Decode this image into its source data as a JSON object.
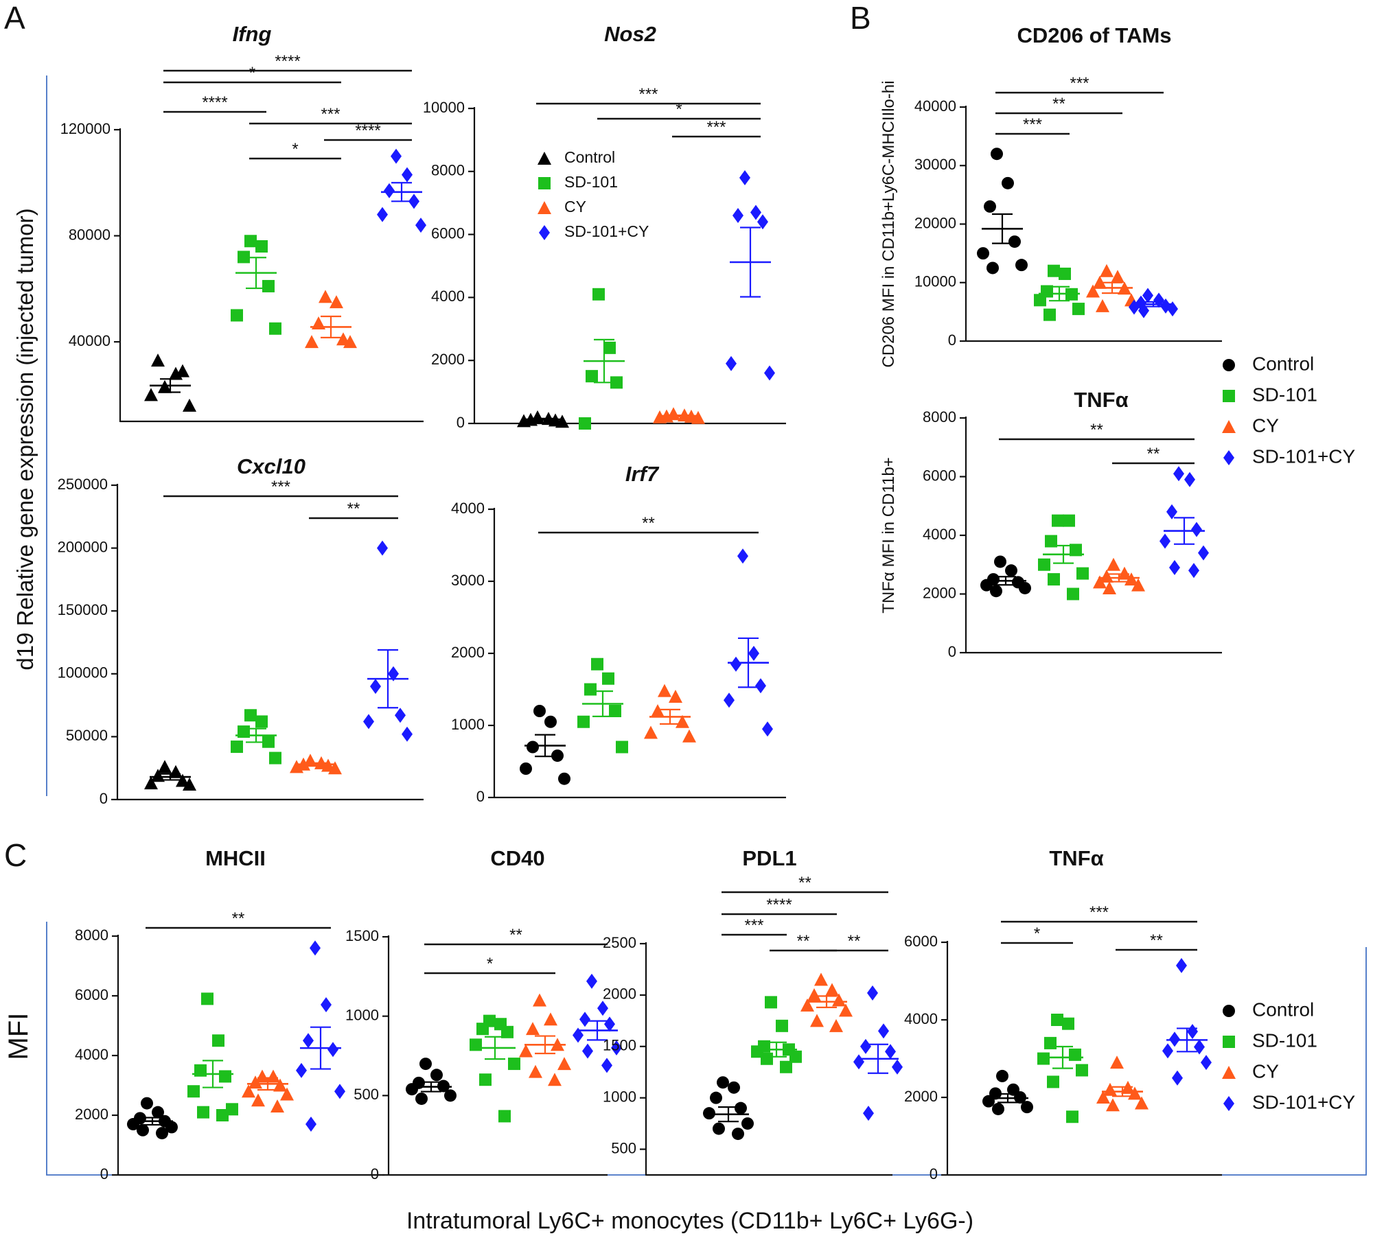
{
  "figure": {
    "panel_labels": [
      "A",
      "B",
      "C"
    ],
    "groups": [
      "Control",
      "SD-101",
      "CY",
      "SD-101+CY"
    ],
    "colors": {
      "Control": "#000000",
      "SD-101": "#1dbf1d",
      "CY": "#ff5a1a",
      "SD-101+CY": "#1a1aff"
    },
    "legend_B": [
      "Control",
      "SD-101",
      "CY",
      "SD-101+CY"
    ],
    "legend_C": [
      "Control",
      "SD-101",
      "CY",
      "SD-101+CY"
    ],
    "panel_A_ylabel": "d19 Relative gene expression (injected tumor)",
    "panel_C_ylabel": "MFI",
    "panel_C_xlabel": "Intratumoral Ly6C+ monocytes (CD11b+ Ly6C+ Ly6G-)"
  },
  "chart_data": [
    {
      "id": "ifng",
      "panel": "A",
      "type": "scatter",
      "title": "Ifng",
      "title_italic": true,
      "ylabel": "",
      "ylim": [
        10000,
        120000
      ],
      "yticks": [
        40000,
        80000,
        120000
      ],
      "markers": [
        "triangle",
        "square",
        "triangle",
        "diamond"
      ],
      "series": [
        {
          "values": [
            23000,
            28000,
            33000,
            29000,
            20000,
            16000
          ],
          "mean": 23500,
          "sem": 2500
        },
        {
          "values": [
            78000,
            76000,
            72000,
            61000,
            50000,
            45000
          ],
          "mean": 66000,
          "sem": 5800
        },
        {
          "values": [
            57000,
            55000,
            47000,
            41000,
            40000,
            40000
          ],
          "mean": 45600,
          "sem": 4000
        },
        {
          "values": [
            110000,
            103000,
            97000,
            93000,
            88000,
            84000
          ],
          "mean": 96500,
          "sem": 3500
        }
      ],
      "sig": [
        {
          "g1": 0,
          "g2": 3,
          "label": "****",
          "y": 103
        },
        {
          "g1": 0,
          "g2": 2,
          "label": "*",
          "y": 120
        },
        {
          "g1": 0,
          "g2": 1,
          "label": "****",
          "y": 163
        },
        {
          "g1": 1,
          "g2": 3,
          "label": "***",
          "y": 180
        },
        {
          "g1": 2,
          "g2": 3,
          "label": "****",
          "y": 204
        },
        {
          "g1": 1,
          "g2": 2,
          "label": "*",
          "y": 231
        }
      ]
    },
    {
      "id": "nos2",
      "panel": "A",
      "type": "scatter",
      "title": "Nos2",
      "title_italic": true,
      "ylabel": "",
      "ylim": [
        0,
        10000
      ],
      "yticks": [
        0,
        2000,
        4000,
        6000,
        8000,
        10000
      ],
      "markers": [
        "triangle",
        "square",
        "triangle",
        "diamond"
      ],
      "series": [
        {
          "values": [
            200,
            150,
            120,
            100,
            80,
            60
          ],
          "mean": 130,
          "sem": 25
        },
        {
          "values": [
            4100,
            2400,
            1500,
            1300,
            0
          ],
          "mean": 1980,
          "sem": 680
        },
        {
          "values": [
            300,
            260,
            230,
            220,
            200,
            180
          ],
          "mean": 240,
          "sem": 20
        },
        {
          "values": [
            7800,
            6700,
            6600,
            6400,
            1900,
            1600
          ],
          "mean": 5120,
          "sem": 1100
        }
      ],
      "sig": [
        {
          "g1": 0,
          "g2": 3,
          "label": "***",
          "y": 151
        },
        {
          "g1": 1,
          "g2": 3,
          "label": "*",
          "y": 173
        },
        {
          "g1": 2,
          "g2": 3,
          "label": "***",
          "y": 199
        }
      ],
      "legend": [
        "Control",
        "SD-101",
        "CY",
        "SD-101+CY"
      ]
    },
    {
      "id": "cxcl10",
      "panel": "A",
      "type": "scatter",
      "title": "Cxcl10",
      "title_italic": true,
      "ylabel": "",
      "ylim": [
        0,
        250000
      ],
      "yticks": [
        0,
        50000,
        100000,
        150000,
        200000,
        250000
      ],
      "markers": [
        "triangle",
        "square",
        "triangle",
        "diamond"
      ],
      "series": [
        {
          "values": [
            26000,
            22000,
            19000,
            15000,
            13000,
            12000
          ],
          "mean": 18000,
          "sem": 2400
        },
        {
          "values": [
            67000,
            62000,
            54000,
            46000,
            42000,
            33000
          ],
          "mean": 51000,
          "sem": 5400
        },
        {
          "values": [
            31000,
            29000,
            28000,
            27000,
            26000,
            25000
          ],
          "mean": 28000,
          "sem": 1000
        },
        {
          "values": [
            200000,
            100000,
            90000,
            67000,
            62000,
            52000
          ],
          "mean": 96000,
          "sem": 23000
        }
      ],
      "sig": [
        {
          "g1": 0,
          "g2": 3,
          "label": "***",
          "y": 723
        },
        {
          "g1": 2,
          "g2": 3,
          "label": "**",
          "y": 755
        }
      ]
    },
    {
      "id": "irf7",
      "panel": "A",
      "type": "scatter",
      "title": "Irf7",
      "title_italic": true,
      "ylabel": "",
      "ylim": [
        0,
        4000
      ],
      "yticks": [
        0,
        1000,
        2000,
        3000,
        4000
      ],
      "markers": [
        "circle",
        "square",
        "triangle",
        "diamond"
      ],
      "series": [
        {
          "values": [
            1200,
            1050,
            700,
            580,
            400,
            260
          ],
          "mean": 720,
          "sem": 150
        },
        {
          "values": [
            1850,
            1650,
            1500,
            1200,
            1050,
            700
          ],
          "mean": 1300,
          "sem": 175
        },
        {
          "values": [
            1480,
            1400,
            1200,
            1050,
            900,
            850
          ],
          "mean": 1120,
          "sem": 100
        },
        {
          "values": [
            3350,
            2000,
            1850,
            1550,
            1350,
            950
          ],
          "mean": 1870,
          "sem": 340
        }
      ],
      "sig": [
        {
          "g1": 0,
          "g2": 3,
          "label": "**",
          "y": 776
        }
      ]
    },
    {
      "id": "cd206",
      "panel": "B",
      "type": "scatter",
      "title": "CD206 of TAMs",
      "title_italic": false,
      "ylabel": "CD206 MFI in CD11b+Ly6C-MHCIIlo-hi",
      "ylim": [
        0,
        40000
      ],
      "yticks": [
        0,
        10000,
        20000,
        30000,
        40000
      ],
      "markers": [
        "circle",
        "square",
        "triangle",
        "diamond"
      ],
      "series": [
        {
          "values": [
            32000,
            27000,
            23000,
            17000,
            15000,
            13000,
            12500
          ],
          "mean": 19200,
          "sem": 2500
        },
        {
          "values": [
            12000,
            11500,
            8500,
            8000,
            7000,
            5500,
            4500
          ],
          "mean": 8100,
          "sem": 1200
        },
        {
          "values": [
            12000,
            11000,
            10000,
            9000,
            8500,
            7000,
            6000
          ],
          "mean": 9100,
          "sem": 900
        },
        {
          "values": [
            7800,
            7000,
            6500,
            6000,
            5800,
            5500,
            5200
          ],
          "mean": 6300,
          "sem": 400
        }
      ],
      "sig": [
        {
          "g1": 0,
          "g2": 3,
          "label": "***",
          "y": 135
        },
        {
          "g1": 0,
          "g2": 2,
          "label": "**",
          "y": 165
        },
        {
          "g1": 0,
          "g2": 1,
          "label": "***",
          "y": 195
        }
      ]
    },
    {
      "id": "tnfa_b",
      "panel": "B",
      "type": "scatter",
      "title": "TNFα",
      "title_italic": false,
      "ylabel": "TNFα MFI in CD11b+",
      "ylim": [
        0,
        8000
      ],
      "yticks": [
        0,
        2000,
        4000,
        6000,
        8000
      ],
      "markers": [
        "circle",
        "square",
        "triangle",
        "diamond"
      ],
      "series": [
        {
          "values": [
            3100,
            2800,
            2500,
            2400,
            2300,
            2200,
            2100
          ],
          "mean": 2450,
          "sem": 140
        },
        {
          "values": [
            4500,
            4500,
            3800,
            3500,
            3000,
            2700,
            2500,
            2000
          ],
          "mean": 3350,
          "sem": 300
        },
        {
          "values": [
            3000,
            2700,
            2600,
            2500,
            2400,
            2300,
            2200
          ],
          "mean": 2550,
          "sem": 130
        },
        {
          "values": [
            6100,
            5900,
            4800,
            4200,
            3800,
            3400,
            2900,
            2800
          ],
          "mean": 4150,
          "sem": 450
        }
      ],
      "sig": [
        {
          "g1": 0,
          "g2": 3,
          "label": "**",
          "y": 640
        },
        {
          "g1": 2,
          "g2": 3,
          "label": "**",
          "y": 675
        }
      ]
    },
    {
      "id": "mhcii",
      "panel": "C",
      "type": "scatter",
      "title": "MHCII",
      "title_italic": false,
      "ylabel": "",
      "ylim": [
        0,
        8000
      ],
      "yticks": [
        0,
        2000,
        4000,
        6000,
        8000
      ],
      "markers": [
        "circle",
        "square",
        "triangle",
        "diamond"
      ],
      "series": [
        {
          "values": [
            2400,
            2100,
            1900,
            1800,
            1700,
            1600,
            1500,
            1400
          ],
          "mean": 1800,
          "sem": 120
        },
        {
          "values": [
            5900,
            4500,
            3500,
            3300,
            2800,
            2200,
            2100,
            2000
          ],
          "mean": 3380,
          "sem": 450
        },
        {
          "values": [
            3300,
            3300,
            3100,
            3000,
            2800,
            2700,
            2500,
            2300
          ],
          "mean": 3050,
          "sem": 200
        },
        {
          "values": [
            7600,
            5700,
            4500,
            4200,
            3500,
            2800,
            1700
          ],
          "mean": 4250,
          "sem": 700
        }
      ],
      "sig": [
        {
          "g1": 0,
          "g2": 3,
          "label": "**",
          "y": 1352
        }
      ]
    },
    {
      "id": "cd40",
      "panel": "C",
      "type": "scatter",
      "title": "CD40",
      "title_italic": false,
      "ylabel": "",
      "ylim": [
        0,
        1500
      ],
      "yticks": [
        0,
        500,
        1000,
        1500
      ],
      "markers": [
        "circle",
        "square",
        "triangle",
        "diamond"
      ],
      "series": [
        {
          "values": [
            700,
            630,
            580,
            560,
            540,
            500,
            480
          ],
          "mean": 555,
          "sem": 30
        },
        {
          "values": [
            970,
            950,
            920,
            900,
            820,
            700,
            600,
            370
          ],
          "mean": 800,
          "sem": 70
        },
        {
          "values": [
            1100,
            980,
            920,
            820,
            780,
            700,
            650,
            600
          ],
          "mean": 820,
          "sem": 55
        },
        {
          "values": [
            1220,
            1050,
            980,
            950,
            880,
            800,
            780,
            690
          ],
          "mean": 910,
          "sem": 60
        }
      ],
      "sig": [
        {
          "g1": 0,
          "g2": 3,
          "label": "**",
          "y": 1376
        },
        {
          "g1": 0,
          "g2": 2,
          "label": "*",
          "y": 1418
        }
      ]
    },
    {
      "id": "pdl1",
      "panel": "C",
      "type": "scatter",
      "title": "PDL1",
      "title_italic": false,
      "ylabel": "",
      "ylim": [
        250,
        2500
      ],
      "yticks": [
        500,
        1000,
        1500,
        2000,
        2500
      ],
      "markers": [
        "circle",
        "square",
        "triangle",
        "diamond"
      ],
      "series": [
        {
          "values": [
            1150,
            1100,
            1000,
            900,
            850,
            750,
            700,
            650
          ],
          "mean": 840,
          "sem": 70
        },
        {
          "values": [
            1930,
            1700,
            1500,
            1470,
            1450,
            1400,
            1380,
            1300
          ],
          "mean": 1470,
          "sem": 70
        },
        {
          "values": [
            2150,
            2050,
            2000,
            1950,
            1900,
            1850,
            1750,
            1700
          ],
          "mean": 1935,
          "sem": 55
        },
        {
          "values": [
            2020,
            1650,
            1500,
            1450,
            1350,
            1300,
            850
          ],
          "mean": 1380,
          "sem": 140
        }
      ],
      "sig": [
        {
          "g1": 0,
          "g2": 3,
          "label": "**",
          "y": 1300
        },
        {
          "g1": 0,
          "g2": 2,
          "label": "****",
          "y": 1332
        },
        {
          "g1": 0,
          "g2": 1,
          "label": "***",
          "y": 1362
        },
        {
          "g1": 1,
          "g2": 2,
          "label": "**",
          "y": 1385
        },
        {
          "g1": 2,
          "g2": 3,
          "label": "**",
          "y": 1385
        }
      ]
    },
    {
      "id": "tnfa_c",
      "panel": "C",
      "type": "scatter",
      "title": "TNFα",
      "title_italic": false,
      "ylabel": "",
      "ylim": [
        0,
        6000
      ],
      "yticks": [
        0,
        2000,
        4000,
        6000
      ],
      "markers": [
        "circle",
        "square",
        "triangle",
        "diamond"
      ],
      "series": [
        {
          "values": [
            2550,
            2200,
            2100,
            2000,
            1900,
            1750,
            1700
          ],
          "mean": 1980,
          "sem": 110
        },
        {
          "values": [
            4000,
            3900,
            3400,
            3100,
            3000,
            2700,
            2400,
            1500
          ],
          "mean": 3030,
          "sem": 280
        },
        {
          "values": [
            2900,
            2250,
            2200,
            2100,
            2000,
            1850,
            1800
          ],
          "mean": 2150,
          "sem": 120
        },
        {
          "values": [
            5400,
            3700,
            3500,
            3300,
            3200,
            2900,
            2500
          ],
          "mean": 3480,
          "sem": 300
        }
      ],
      "sig": [
        {
          "g1": 0,
          "g2": 3,
          "label": "***",
          "y": 1343
        },
        {
          "g1": 0,
          "g2": 1,
          "label": "*",
          "y": 1374
        },
        {
          "g1": 2,
          "g2": 3,
          "label": "**",
          "y": 1384
        }
      ]
    }
  ]
}
